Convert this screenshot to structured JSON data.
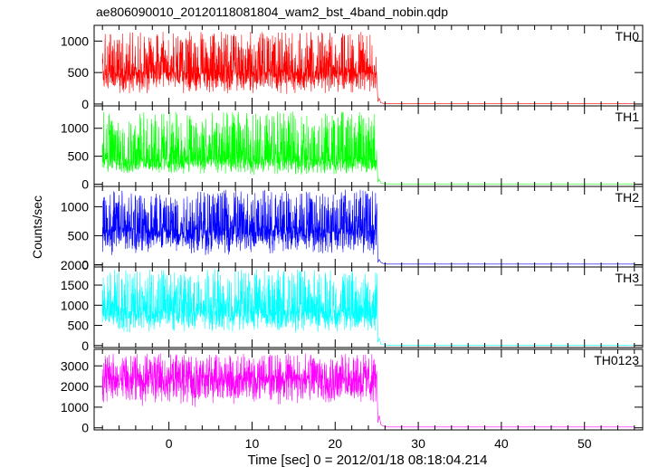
{
  "chart_data": {
    "type": "line",
    "title": "ae806090010_20120118081804_wam2_bst_4band_nobin.qdp",
    "xlabel": "Time [sec] 0 = 2012/01/18 08:18:04.214",
    "ylabel": "Counts/sec",
    "xlim": [
      -9,
      57
    ],
    "xticks": [
      0,
      10,
      20,
      30,
      40,
      50
    ],
    "grid": false,
    "burst_end_time": 25,
    "series_time_range": [
      -8,
      56
    ],
    "panels": [
      {
        "name": "TH0",
        "color": "#ff0000",
        "ylim": [
          -30,
          1250
        ],
        "yticks": [
          0,
          500,
          1000
        ],
        "active_level": [
          150,
          1150
        ],
        "active_mean": 500,
        "quiescent_level": 5
      },
      {
        "name": "TH1",
        "color": "#00ff00",
        "ylim": [
          -40,
          1400
        ],
        "yticks": [
          0,
          500,
          1000
        ],
        "active_level": [
          150,
          1300
        ],
        "active_mean": 450,
        "quiescent_level": 5
      },
      {
        "name": "TH2",
        "color": "#0000ff",
        "ylim": [
          -40,
          1350
        ],
        "yticks": [
          0,
          500,
          1000
        ],
        "active_level": [
          150,
          1300
        ],
        "active_mean": 600,
        "quiescent_level": 10
      },
      {
        "name": "TH3",
        "color": "#00ffff",
        "ylim": [
          -50,
          1950
        ],
        "yticks": [
          0,
          500,
          1000,
          1500,
          2000
        ],
        "active_level": [
          300,
          1900
        ],
        "active_mean": 850,
        "quiescent_level": 10
      },
      {
        "name": "TH0123",
        "color": "#ff00ff",
        "ylim": [
          -100,
          3800
        ],
        "yticks": [
          0,
          1000,
          2000,
          3000
        ],
        "active_level": [
          1000,
          3600
        ],
        "active_mean": 2400,
        "quiescent_level": 40
      }
    ]
  }
}
